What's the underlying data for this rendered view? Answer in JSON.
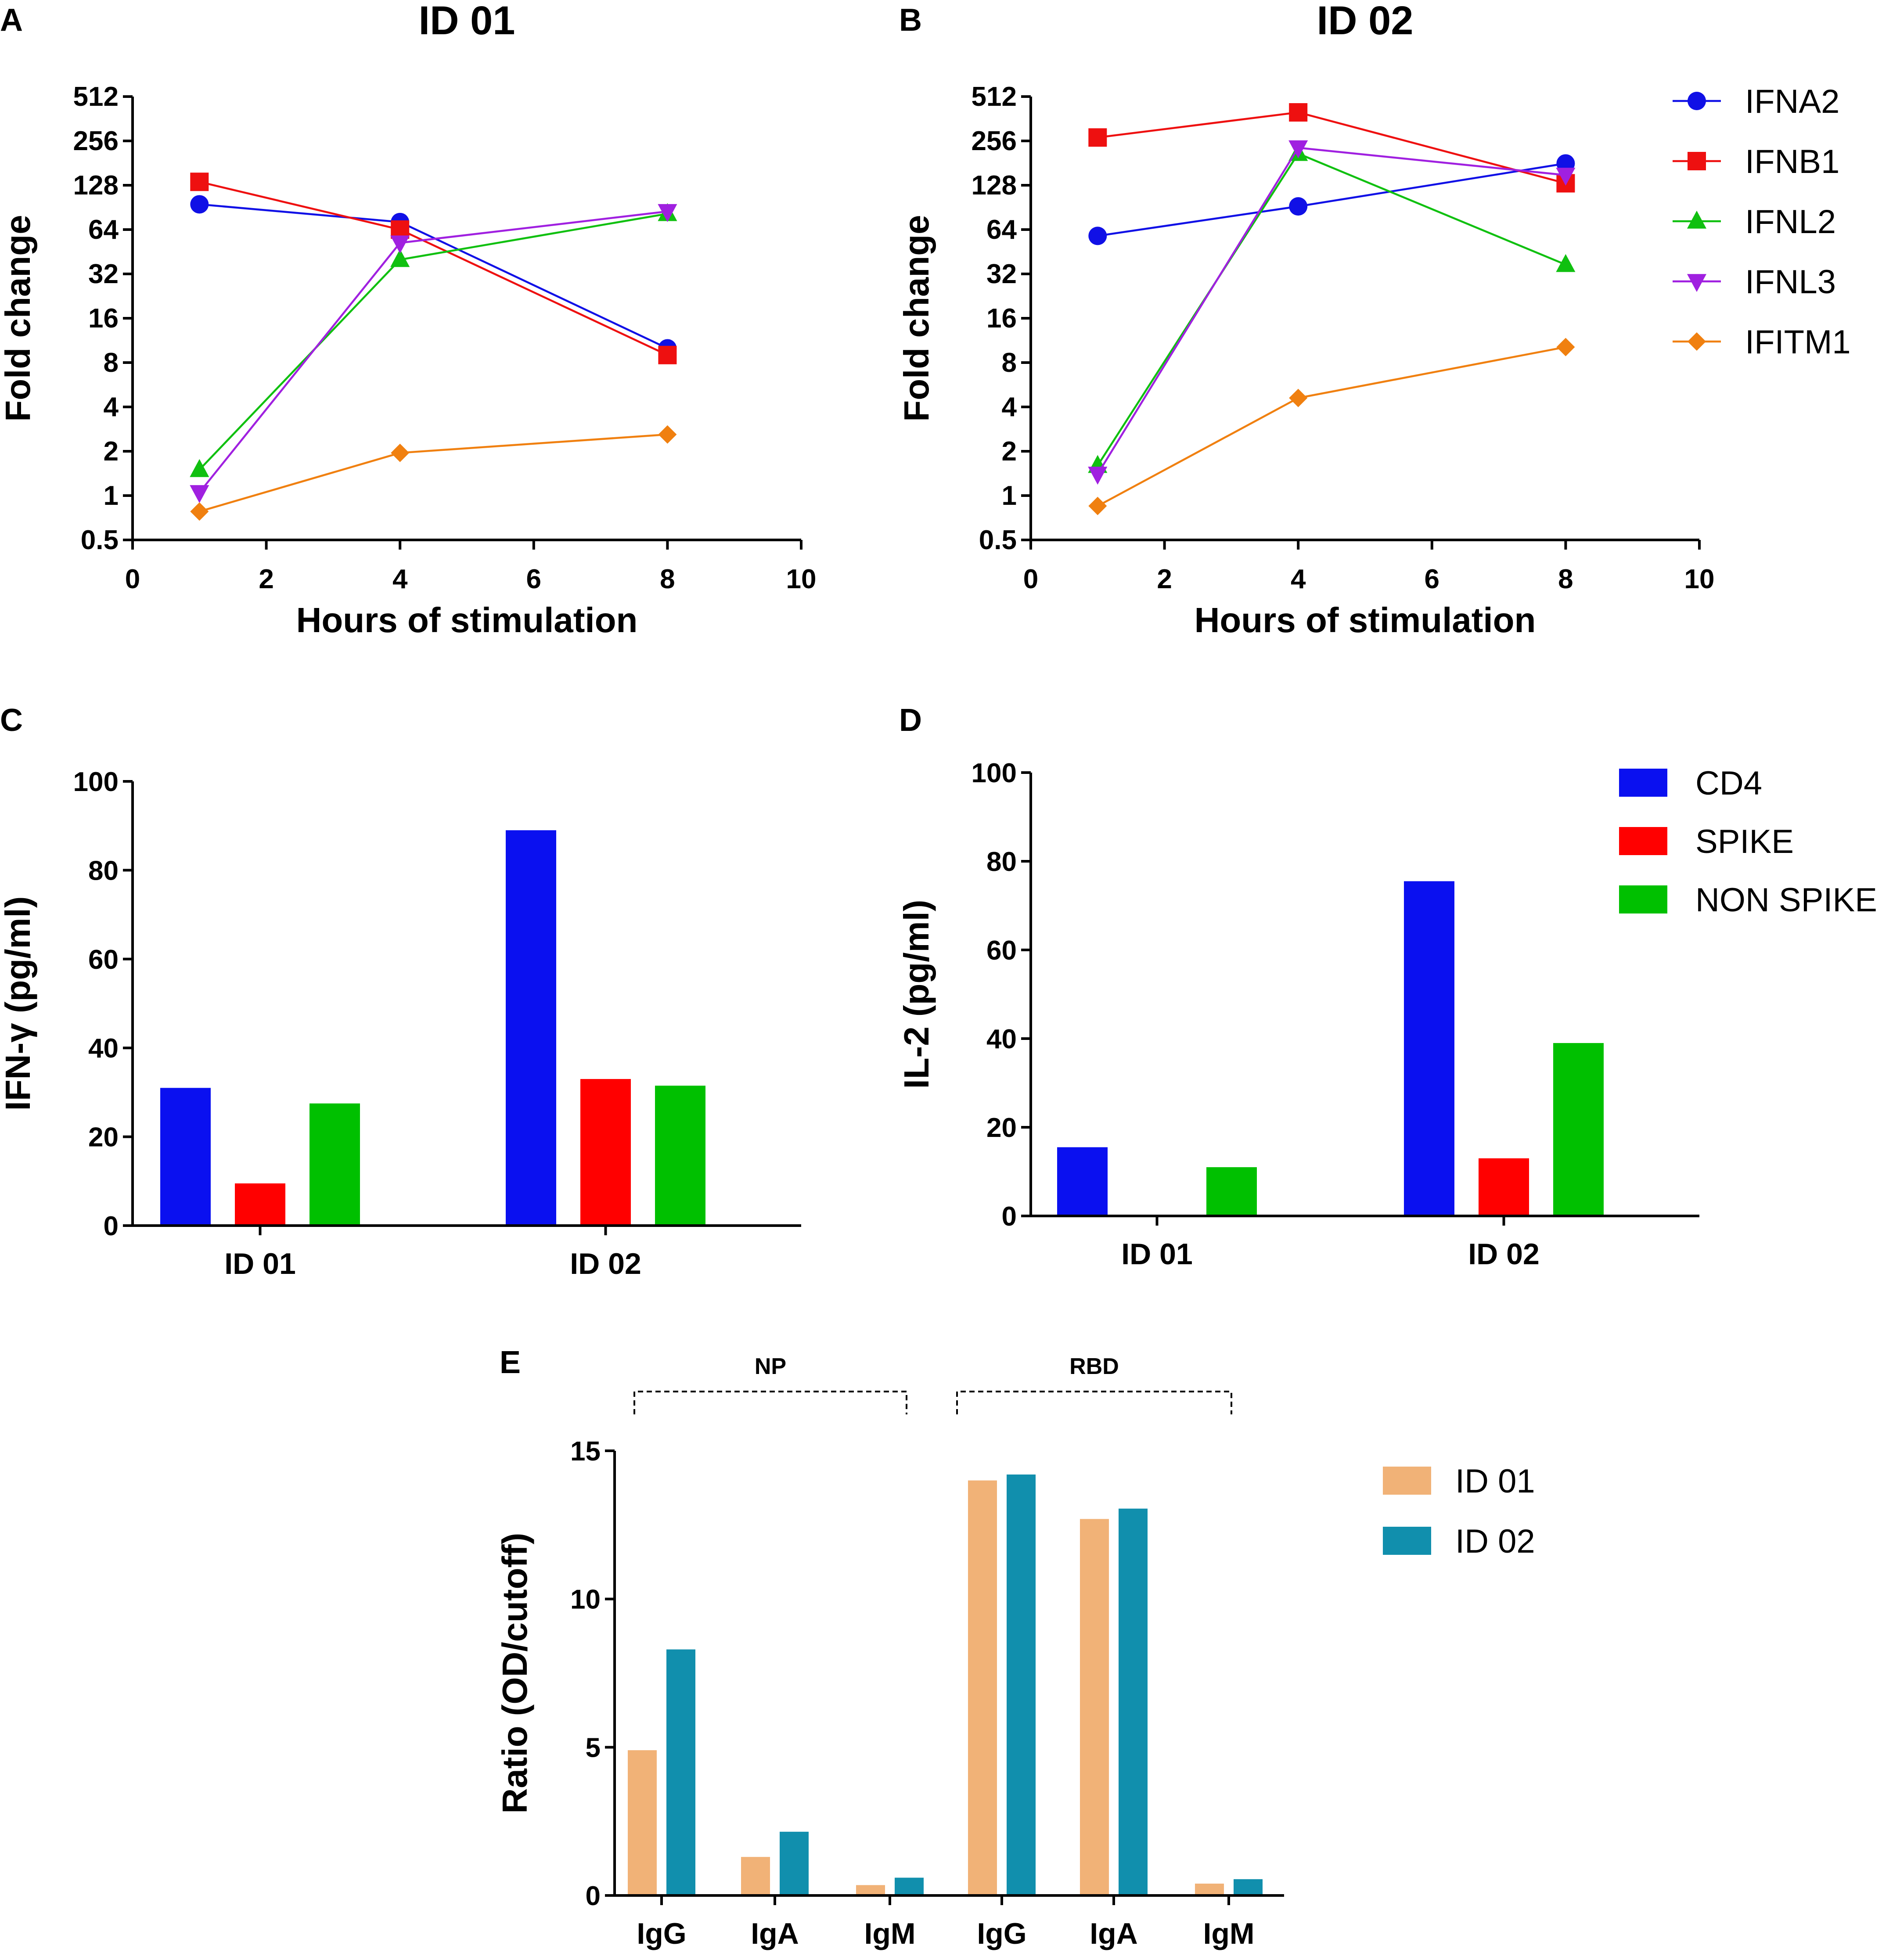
{
  "legends": {
    "line": [
      {
        "label": "IFNA2",
        "color": "#1010e6",
        "marker": "circle"
      },
      {
        "label": "IFNB1",
        "color": "#ee1010",
        "marker": "square"
      },
      {
        "label": "IFNL2",
        "color": "#10c010",
        "marker": "triangle-up"
      },
      {
        "label": "IFNL3",
        "color": "#a020e0",
        "marker": "triangle-down"
      },
      {
        "label": "IFITM1",
        "color": "#f08010",
        "marker": "diamond"
      }
    ],
    "bar": [
      {
        "label": "CD4",
        "color": "#0a10f0"
      },
      {
        "label": "SPIKE",
        "color": "#ff0000"
      },
      {
        "label": "NON SPIKE",
        "color": "#00c000"
      }
    ],
    "antibody": [
      {
        "label": "ID 01",
        "color": "#f1b277"
      },
      {
        "label": "ID 02",
        "color": "#118fad"
      }
    ]
  },
  "chart_data": [
    {
      "panel": "A",
      "type": "line",
      "title": "ID 01",
      "xlabel": "Hours of stimulation",
      "ylabel": "Fold change",
      "yscale": "log2",
      "xlim": [
        0,
        10
      ],
      "ylim": [
        0.5,
        512
      ],
      "xticks": [
        "0",
        "2",
        "4",
        "6",
        "8",
        "10"
      ],
      "yticks": [
        "0.5",
        "1",
        "2",
        "4",
        "8",
        "16",
        "32",
        "64",
        "128",
        "256",
        "512"
      ],
      "x": [
        1,
        4,
        8
      ],
      "series": [
        {
          "name": "IFNA2",
          "values": [
            95,
            72,
            10
          ]
        },
        {
          "name": "IFNB1",
          "values": [
            135,
            64,
            9
          ]
        },
        {
          "name": "IFNL2",
          "values": [
            1.5,
            40,
            82
          ]
        },
        {
          "name": "IFNL3",
          "values": [
            1.05,
            52,
            85
          ]
        },
        {
          "name": "IFITM1",
          "values": [
            0.78,
            1.95,
            2.6
          ]
        }
      ]
    },
    {
      "panel": "B",
      "type": "line",
      "title": "ID 02",
      "xlabel": "Hours of stimulation",
      "ylabel": "Fold change",
      "yscale": "log2",
      "xlim": [
        0,
        10
      ],
      "ylim": [
        0.5,
        512
      ],
      "xticks": [
        "0",
        "2",
        "4",
        "6",
        "8",
        "10"
      ],
      "yticks": [
        "0.5",
        "1",
        "2",
        "4",
        "8",
        "16",
        "32",
        "64",
        "128",
        "256",
        "512"
      ],
      "x": [
        1,
        4,
        8
      ],
      "series": [
        {
          "name": "IFNA2",
          "values": [
            58,
            92,
            180
          ]
        },
        {
          "name": "IFNB1",
          "values": [
            270,
            400,
            132
          ]
        },
        {
          "name": "IFNL2",
          "values": [
            1.6,
            210,
            37
          ]
        },
        {
          "name": "IFNL3",
          "values": [
            1.4,
            230,
            150
          ]
        },
        {
          "name": "IFITM1",
          "values": [
            0.85,
            4.6,
            10.2
          ]
        }
      ]
    },
    {
      "panel": "C",
      "type": "bar",
      "ylabel": "IFN-γ (pg/ml)",
      "ylim": [
        0,
        100
      ],
      "yticks": [
        "0",
        "20",
        "40",
        "60",
        "80",
        "100"
      ],
      "categories": [
        "ID 01",
        "ID 02"
      ],
      "series": [
        {
          "name": "CD4",
          "values": [
            31,
            89
          ]
        },
        {
          "name": "SPIKE",
          "values": [
            9.5,
            33
          ]
        },
        {
          "name": "NON SPIKE",
          "values": [
            27.5,
            31.5
          ]
        }
      ]
    },
    {
      "panel": "D",
      "type": "bar",
      "ylabel": "IL-2 (pg/ml)",
      "ylim": [
        0,
        100
      ],
      "yticks": [
        "0",
        "20",
        "40",
        "60",
        "80",
        "100"
      ],
      "categories": [
        "ID 01",
        "ID 02"
      ],
      "series": [
        {
          "name": "CD4",
          "values": [
            15.5,
            75.5
          ]
        },
        {
          "name": "SPIKE",
          "values": [
            0,
            13
          ]
        },
        {
          "name": "NON SPIKE",
          "values": [
            11,
            39
          ]
        }
      ]
    },
    {
      "panel": "E",
      "type": "bar",
      "ylabel": "Ratio (OD/cutoff)",
      "ylim": [
        0,
        15
      ],
      "yticks": [
        "0",
        "5",
        "10",
        "15"
      ],
      "groups": [
        {
          "label": "NP",
          "categories": [
            "IgG",
            "IgA",
            "IgM"
          ]
        },
        {
          "label": "RBD",
          "categories": [
            "IgG",
            "IgA",
            "IgM"
          ]
        }
      ],
      "categories": [
        "IgG",
        "IgA",
        "IgM",
        "IgG",
        "IgA",
        "IgM"
      ],
      "series": [
        {
          "name": "ID 01",
          "values": [
            4.9,
            1.3,
            0.35,
            14.0,
            12.7,
            0.4
          ]
        },
        {
          "name": "ID 02",
          "values": [
            8.3,
            2.15,
            0.6,
            14.2,
            13.05,
            0.55
          ]
        }
      ]
    }
  ]
}
